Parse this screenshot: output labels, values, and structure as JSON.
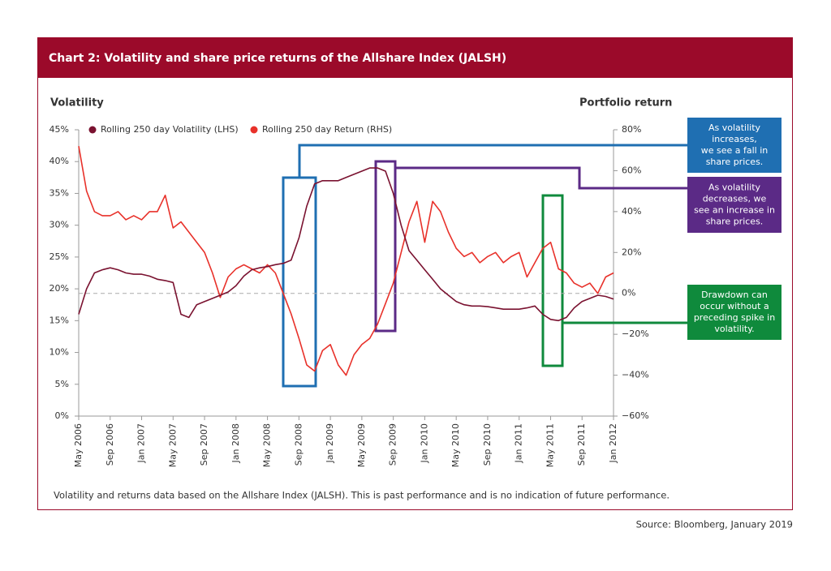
{
  "chart_data": {
    "type": "line",
    "title": "Chart 2: Volatility and share price returns of the Allshare Index (JALSH)",
    "ylabel": "Volatility",
    "y2label": "Portfolio return",
    "categories": [
      "May 2006",
      null,
      null,
      null,
      "Sep 2006",
      null,
      null,
      null,
      "Jan 2007",
      null,
      null,
      null,
      "May 2007",
      null,
      null,
      null,
      "Sep 2007",
      null,
      null,
      null,
      "Jan 2008",
      null,
      null,
      null,
      "May 2008",
      null,
      null,
      null,
      "Sep 2008",
      null,
      null,
      null,
      "Jan 2009",
      null,
      null,
      null,
      "May 2009",
      null,
      null,
      null,
      "Sep 2009",
      null,
      null,
      null,
      "Jan 2010",
      null,
      null,
      null,
      "May 2010",
      null,
      null,
      null,
      "Sep 2010",
      null,
      null,
      null,
      "Jan 2011",
      null,
      null,
      null,
      "May 2011",
      null,
      null,
      null,
      "Sep 2011",
      null,
      null,
      null,
      "Jan 2012"
    ],
    "series": [
      {
        "name": "Rolling 250 day Volatility (LHS)",
        "color": "#7a1230",
        "values": [
          16,
          20,
          22.5,
          23,
          23.3,
          23,
          22.5,
          22.3,
          22.3,
          22,
          21.5,
          21.3,
          21,
          16,
          15.5,
          17.5,
          18,
          18.5,
          19,
          19.5,
          20.5,
          22,
          23,
          23.3,
          23.5,
          23.8,
          24,
          24.5,
          28,
          33,
          36.5,
          37,
          37,
          37,
          37.5,
          38,
          38.5,
          39,
          39,
          38.5,
          35,
          30,
          26,
          24.5,
          23,
          21.5,
          20,
          19,
          18,
          17.5,
          17.3,
          17.3,
          17.2,
          17,
          16.8,
          16.8,
          16.8,
          17,
          17.3,
          16,
          15.2,
          15,
          15.5,
          17,
          18,
          18.5,
          19,
          18.8,
          18.4
        ]
      },
      {
        "name": "Rolling 250 day Return (RHS)",
        "color": "#e8312a",
        "axis": "y2",
        "values": [
          72,
          50,
          40,
          38,
          38,
          40,
          36,
          38,
          36,
          40,
          40,
          48,
          32,
          35,
          30,
          25,
          20,
          10,
          -2,
          8,
          12,
          14,
          12,
          10,
          14,
          10,
          0,
          -10,
          -22,
          -35,
          -38,
          -28,
          -25,
          -35,
          -40,
          -30,
          -25,
          -22,
          -15,
          -5,
          5,
          20,
          35,
          45,
          25,
          45,
          40,
          30,
          22,
          18,
          20,
          15,
          18,
          20,
          15,
          18,
          20,
          8,
          15,
          22,
          25,
          12,
          10,
          5,
          3,
          5,
          0,
          8,
          10
        ]
      }
    ],
    "ylim": [
      0,
      45
    ],
    "yticks": [
      {
        "value": 0,
        "label": "0%"
      },
      {
        "value": 5,
        "label": "5%"
      },
      {
        "value": 10,
        "label": "10%"
      },
      {
        "value": 15,
        "label": "15%"
      },
      {
        "value": 20,
        "label": "20%"
      },
      {
        "value": 25,
        "label": "25%"
      },
      {
        "value": 30,
        "label": "30%"
      },
      {
        "value": 35,
        "label": "35%"
      },
      {
        "value": 40,
        "label": "40%"
      },
      {
        "value": 45,
        "label": "45%"
      }
    ],
    "y2lim": [
      -60,
      80
    ],
    "y2ticks": [
      {
        "value": -60,
        "label": "−60%"
      },
      {
        "value": -40,
        "label": "−40%"
      },
      {
        "value": -20,
        "label": "−20%"
      },
      {
        "value": 0,
        "label": "0%"
      },
      {
        "value": 20,
        "label": "20%"
      },
      {
        "value": 40,
        "label": "40%"
      },
      {
        "value": 60,
        "label": "60%"
      },
      {
        "value": 80,
        "label": "80%"
      }
    ],
    "annotations": [
      {
        "color": "#1f6fb2",
        "lines": [
          "As volatility",
          "increases,",
          "we see a fall in",
          "share prices."
        ]
      },
      {
        "color": "#5b2a86",
        "lines": [
          "As volatility",
          "decreases, we",
          "see an increase in",
          "share prices."
        ]
      },
      {
        "color": "#0f8a3c",
        "lines": [
          "Drawdown can",
          "occur without a",
          "preceding spike in",
          "volatility."
        ]
      }
    ],
    "footnote": "Volatility and returns data based on the Allshare Index (JALSH). This is past performance and is no indication of future performance.",
    "source": "Source: Bloomberg, January 2019"
  }
}
